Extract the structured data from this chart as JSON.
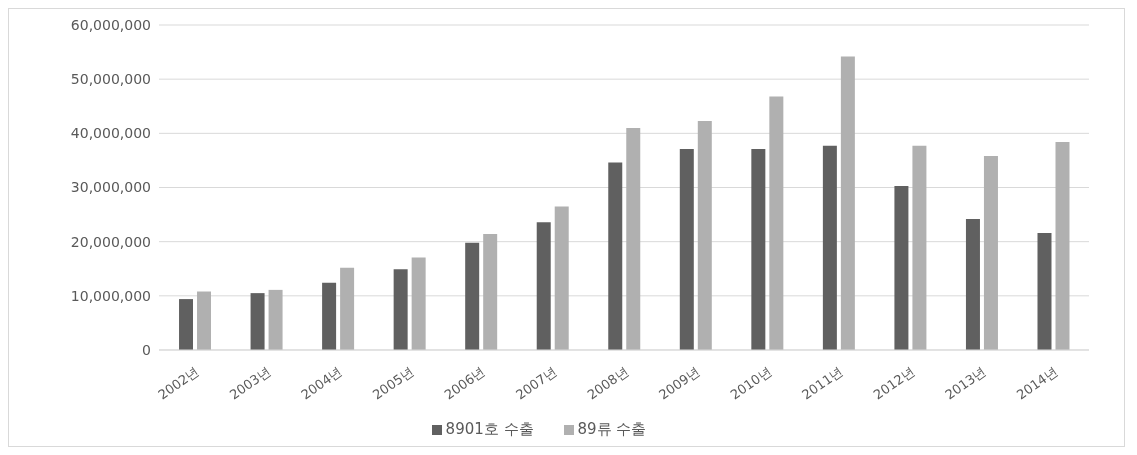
{
  "chart_data": {
    "type": "bar",
    "categories": [
      "2002년",
      "2003년",
      "2004년",
      "2005년",
      "2006년",
      "2007년",
      "2008년",
      "2009년",
      "2010년",
      "2011년",
      "2012년",
      "2013년",
      "2014년"
    ],
    "series": [
      {
        "name": "8901호 수출",
        "color": "#606060",
        "values": [
          9400000,
          10500000,
          12400000,
          14900000,
          19800000,
          23600000,
          34600000,
          37100000,
          37100000,
          37700000,
          30300000,
          24200000,
          21600000
        ]
      },
      {
        "name": "89류 수출",
        "color": "#b0b0b0",
        "values": [
          10800000,
          11100000,
          15200000,
          17100000,
          21400000,
          26500000,
          41000000,
          42300000,
          46800000,
          54200000,
          37700000,
          35800000,
          38400000
        ]
      }
    ],
    "ylim": [
      0,
      60000000
    ],
    "yticks": [
      0,
      {
        "value": 10000000,
        "label": "10,000,000"
      },
      {
        "value": 20000000,
        "label": "20,000,000"
      },
      {
        "value": 30000000,
        "label": "30,000,000"
      },
      {
        "value": 40000000,
        "label": "40,000,000"
      },
      {
        "value": 50000000,
        "label": "50,000,000"
      },
      {
        "value": 60000000,
        "label": "60,000,000"
      }
    ],
    "grid": "y",
    "legend": "bottom"
  }
}
